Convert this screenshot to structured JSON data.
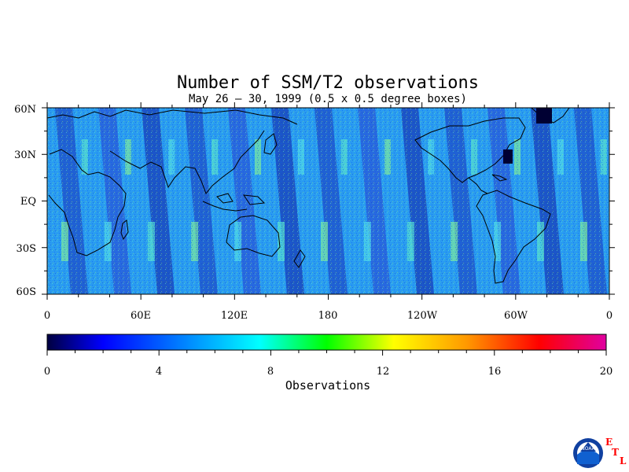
{
  "title": "Number of SSM/T2 observations",
  "subtitle": "May 26 – 30, 1999 (0.5 x 0.5 degree boxes)",
  "map": {
    "lat_ticks": [
      "60N",
      "30N",
      "EQ",
      "30S",
      "60S"
    ],
    "lon_ticks": [
      "0",
      "60E",
      "120E",
      "180",
      "120W",
      "60W",
      "0"
    ],
    "lat_range": [
      -60,
      60
    ],
    "lon_range": [
      0,
      360
    ],
    "grid_resolution_deg": 0.5
  },
  "colorbar": {
    "label": "Observations",
    "tick_labels": [
      "0",
      "4",
      "8",
      "12",
      "16",
      "20"
    ],
    "range": [
      0,
      20
    ],
    "colors": [
      "#000040",
      "#0000ff",
      "#00aaff",
      "#00ffff",
      "#00ff00",
      "#ffff00",
      "#ff8800",
      "#ff0000",
      "#e000a0"
    ]
  },
  "logo": {
    "agency_text": "NOAA",
    "lab_letters": [
      "E",
      "T",
      "L"
    ],
    "lab_color": "#ff0000"
  }
}
